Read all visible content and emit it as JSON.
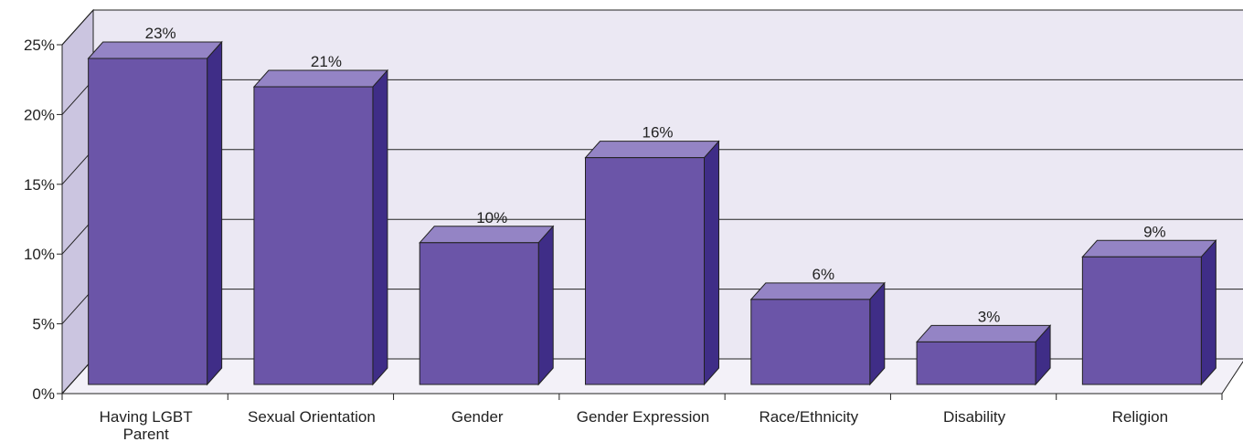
{
  "chart_data": {
    "type": "bar",
    "categories": [
      "Having LGBT Parent",
      "Sexual Orientation",
      "Gender",
      "Gender Expression",
      "Race/Ethnicity",
      "Disability",
      "Religion"
    ],
    "values": [
      23,
      21,
      10,
      16,
      6,
      3,
      9
    ],
    "data_labels": [
      "23%",
      "21%",
      "10%",
      "16%",
      "6%",
      "3%",
      "9%"
    ],
    "ylim": [
      0,
      25
    ],
    "yticks": [
      0,
      5,
      10,
      15,
      20,
      25
    ],
    "ytick_labels": [
      "0%",
      "5%",
      "10%",
      "15%",
      "20%",
      "25%"
    ],
    "title": "",
    "xlabel": "",
    "ylabel": "",
    "grid": true,
    "three_d": true,
    "colors": {
      "bar_front": "#6b55a8",
      "bar_top": "#9484c5",
      "bar_side": "#3f2d87",
      "wall": "#ebe8f3",
      "side_wall": "#cbc5e0",
      "floor": "#f3f1f8",
      "line": "#222222"
    }
  }
}
